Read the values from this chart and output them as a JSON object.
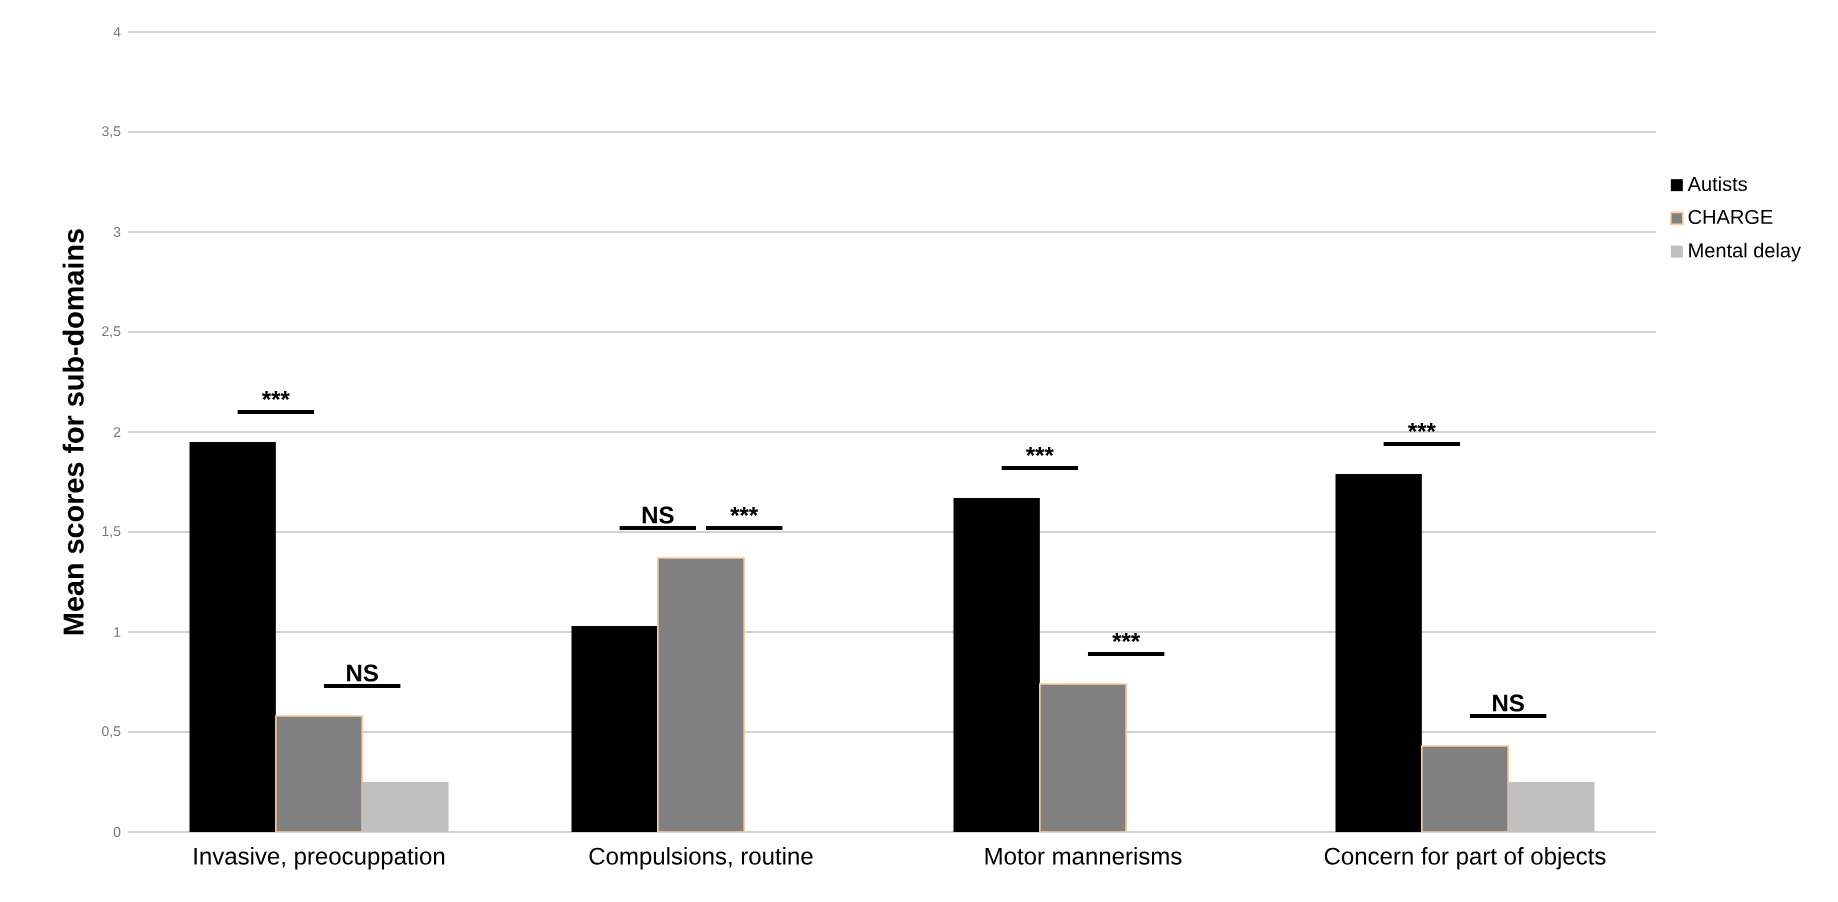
{
  "chart_data": {
    "type": "bar",
    "ylabel": "Mean scores for sub-domains",
    "categories": [
      "Invasive, preocuppation",
      "Compulsions, routine",
      "Motor mannerisms",
      "Concern for part of objects"
    ],
    "series": [
      {
        "name": "Autists",
        "color": "#000000",
        "values": [
          1.95,
          1.03,
          1.67,
          1.79
        ]
      },
      {
        "name": "CHARGE",
        "color": "#808080",
        "values": [
          0.58,
          1.37,
          0.74,
          0.43
        ]
      },
      {
        "name": "Mental delay",
        "color": "#c0c0c0",
        "values": [
          0.25,
          null,
          null,
          0.25
        ]
      }
    ],
    "ylim": [
      0,
      4
    ],
    "yticks": [
      0,
      {
        "value": 0.5,
        "label": "0,5"
      },
      1,
      {
        "value": 1.5,
        "label": "1,5"
      },
      2,
      {
        "value": 2.5,
        "label": "2,5"
      },
      3,
      {
        "value": 3.5,
        "label": "3,5"
      },
      4
    ],
    "grid": "y",
    "legend": "right",
    "annotations": [
      "***",
      "NS",
      "NS",
      "***",
      "***",
      "***",
      "***",
      "NS"
    ]
  }
}
